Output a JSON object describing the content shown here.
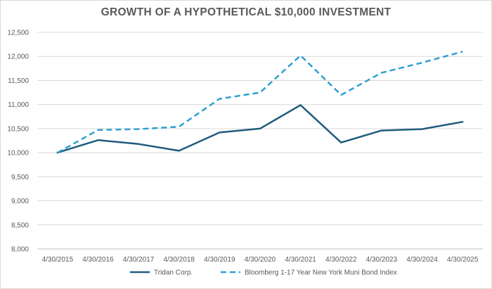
{
  "chart_data": {
    "type": "line",
    "title": "GROWTH OF A HYPOTHETICAL $10,000 INVESTMENT",
    "categories": [
      "4/30/2015",
      "4/30/2016",
      "4/30/2017",
      "4/30/2018",
      "4/30/2019",
      "4/30/2020",
      "4/30/2021",
      "4/30/2022",
      "4/30/2023",
      "4/30/2024",
      "4/30/2025"
    ],
    "ylim": [
      8000,
      12500
    ],
    "yticks": [
      8000,
      8500,
      9000,
      9500,
      10000,
      10500,
      11000,
      11500,
      12000,
      12500
    ],
    "ytick_labels": [
      "8,000",
      "8,500",
      "9,000",
      "9,500",
      "10,000",
      "10,500",
      "11,000",
      "11,500",
      "12,000",
      "12,500"
    ],
    "grid": true,
    "legend_position": "bottom",
    "series": [
      {
        "name": "Tridan Corp.",
        "color": "#1f5c7d",
        "dash": "solid",
        "values": [
          10000,
          10260,
          10180,
          10040,
          10420,
          10500,
          10990,
          10210,
          10460,
          10490,
          10640
        ]
      },
      {
        "name": "Bloomberg 1-17 Year New York Muni Bond Index",
        "color": "#2e9fd1",
        "dash": "dashed",
        "values": [
          10000,
          10470,
          10490,
          10540,
          11120,
          11250,
          12020,
          11200,
          11660,
          11870,
          12100
        ]
      }
    ]
  }
}
